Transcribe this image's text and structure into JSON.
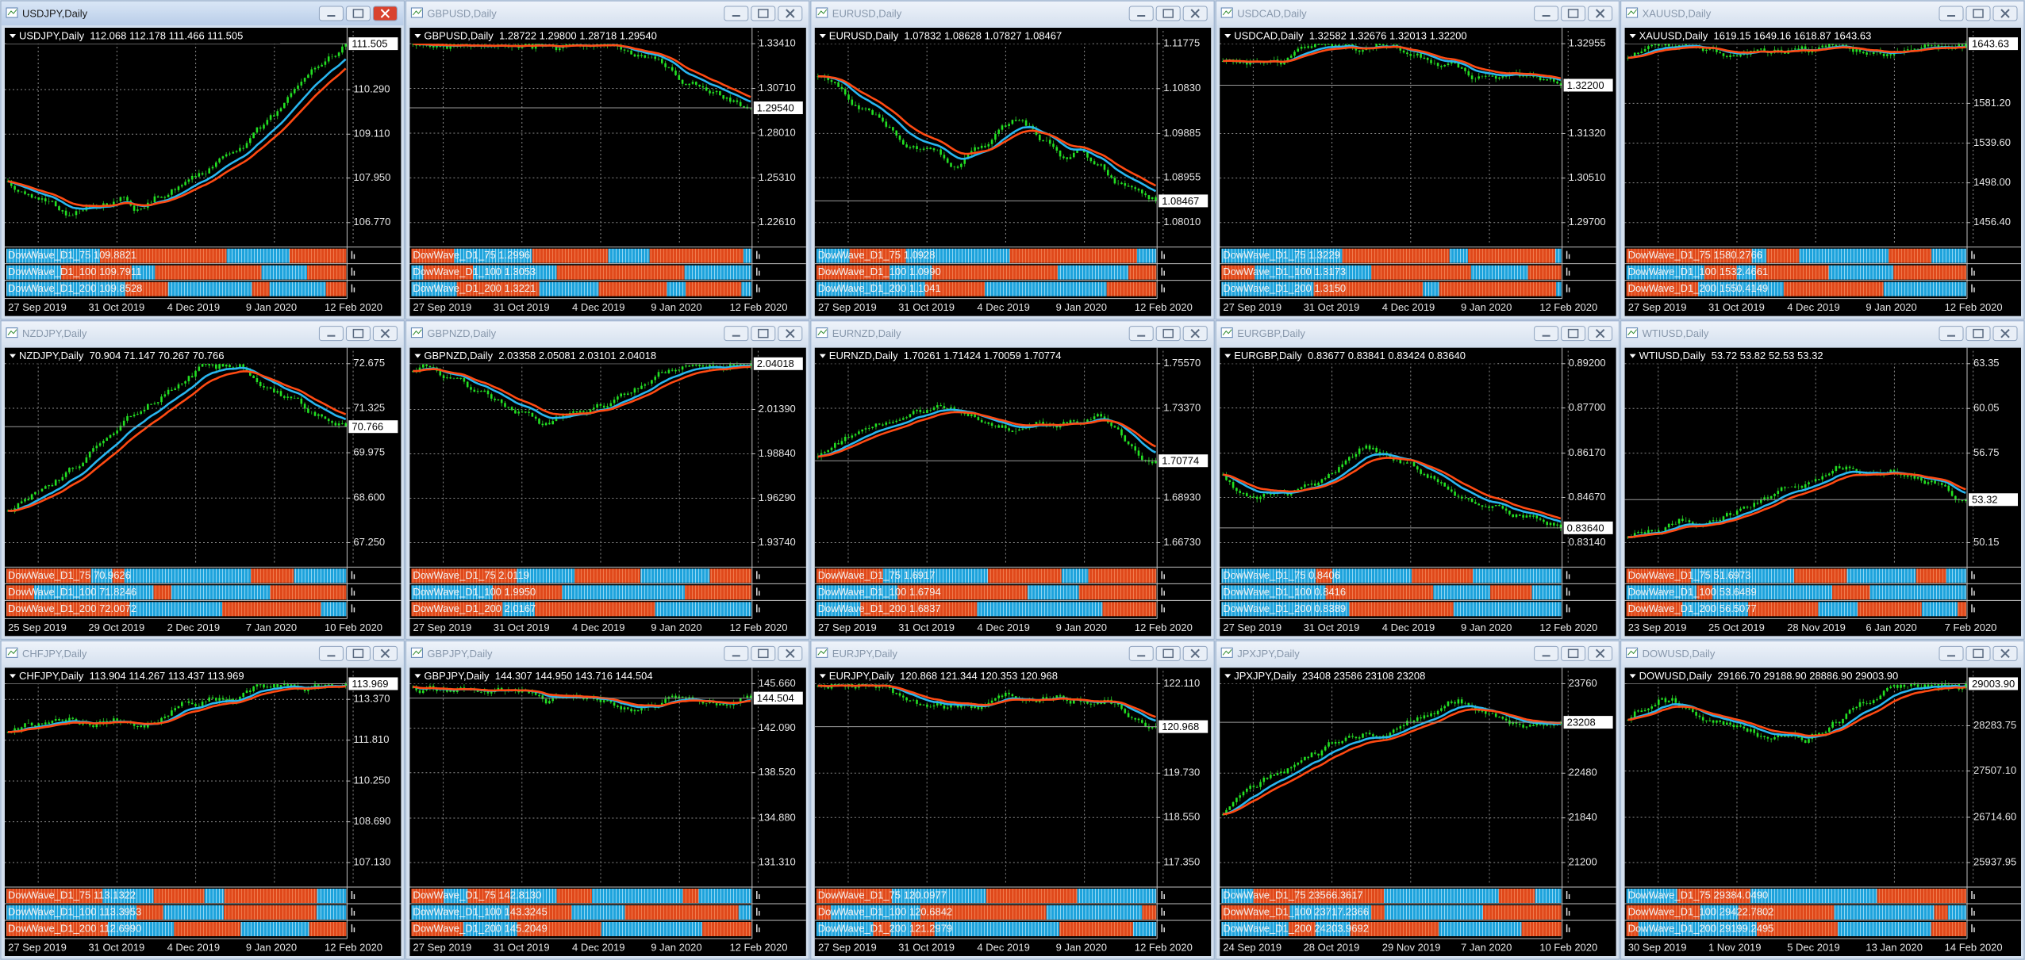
{
  "windows": [
    {
      "title": "USDJPY,Daily",
      "header": "USDJPY,Daily  112.068 112.178 111.466 111.505",
      "price_scale": [
        "110.290",
        "109.110",
        "107.950",
        "106.770"
      ],
      "current_price": "111.505",
      "indicators": [
        "DowWave_D1_75 109.8821",
        "DowWave_D1_100 109.7911",
        "DowWave_D1_200 109.8528"
      ],
      "dates": [
        "27 Sep 2019",
        "31 Oct 2019",
        "4 Dec 2019",
        "9 Jan 2020",
        "12 Feb 2020"
      ]
    },
    {
      "title": "GBPUSD,Daily",
      "header": "GBPUSD,Daily  1.28722 1.29800 1.28718 1.29540",
      "price_scale": [
        "1.33410",
        "1.30710",
        "1.28010",
        "1.25310",
        "1.22610"
      ],
      "current_price": "1.29540",
      "indicators": [
        "DowWave_D1_75 1.2996",
        "DowWave_D1_100 1.3053",
        "DowWave_D1_200 1.3221"
      ],
      "dates": [
        "27 Sep 2019",
        "31 Oct 2019",
        "4 Dec 2019",
        "9 Jan 2020",
        "12 Feb 2020"
      ]
    },
    {
      "title": "EURUSD,Daily",
      "header": "EURUSD,Daily  1.07832 1.08628 1.07827 1.08467",
      "price_scale": [
        "1.11775",
        "1.10830",
        "1.09885",
        "1.08955",
        "1.08010"
      ],
      "current_price": "1.08467",
      "indicators": [
        "DowWave_D1_75 1.0928",
        "DowWave_D1_100 1.0990",
        "DowWave_D1_200 1.1041"
      ],
      "dates": [
        "27 Sep 2019",
        "31 Oct 2019",
        "4 Dec 2019",
        "9 Jan 2020",
        "12 Feb 2020"
      ]
    },
    {
      "title": "USDCAD,Daily",
      "header": "USDCAD,Daily  1.32582 1.32676 1.32013 1.32200",
      "price_scale": [
        "1.32955",
        "1.31320",
        "1.30510",
        "1.29700"
      ],
      "current_price": "1.32200",
      "indicators": [
        "DowWave_D1_75 1.3229",
        "DowWave_D1_100 1.3173",
        "DowWave_D1_200 1.3150"
      ],
      "dates": [
        "27 Sep 2019",
        "31 Oct 2019",
        "4 Dec 2019",
        "9 Jan 2020",
        "12 Feb 2020"
      ]
    },
    {
      "title": "XAUUSD,Daily",
      "header": "XAUUSD,Daily  1619.15 1649.16 1618.87 1643.63",
      "price_scale": [
        "1581.20",
        "1539.60",
        "1498.00",
        "1456.40"
      ],
      "current_price": "1643.63",
      "indicators": [
        "DowWave_D1_75 1580.2766",
        "DowWave_D1_100 1532.4661",
        "DowWave_D1_200 1550.4149"
      ],
      "dates": [
        "27 Sep 2019",
        "31 Oct 2019",
        "4 Dec 2019",
        "9 Jan 2020",
        "12 Feb 2020"
      ]
    },
    {
      "title": "NZDJPY,Daily",
      "header": "NZDJPY,Daily  70.904 71.147 70.267 70.766",
      "price_scale": [
        "72.675",
        "71.325",
        "69.975",
        "68.600",
        "67.250"
      ],
      "current_price": "70.766",
      "indicators": [
        "DowWave_D1_75 70.9626",
        "DowWave_D1_100 71.8246",
        "DowWave_D1_200 72.0072"
      ],
      "dates": [
        "25 Sep 2019",
        "29 Oct 2019",
        "2 Dec 2019",
        "7 Jan 2020",
        "10 Feb 2020"
      ]
    },
    {
      "title": "GBPNZD,Daily",
      "header": "GBPNZD,Daily  2.03358 2.05081 2.03101 2.04018",
      "price_scale": [
        "2.01390",
        "1.98840",
        "1.96290",
        "1.93740"
      ],
      "current_price": "2.04018",
      "indicators": [
        "DowWave_D1_75 2.0119",
        "DowWave_D1_100 1.9950",
        "DowWave_D1_200 2.0167"
      ],
      "dates": [
        "27 Sep 2019",
        "31 Oct 2019",
        "4 Dec 2019",
        "9 Jan 2020",
        "12 Feb 2020"
      ]
    },
    {
      "title": "EURNZD,Daily",
      "header": "EURNZD,Daily  1.70261 1.71424 1.70059 1.70774",
      "price_scale": [
        "1.75570",
        "1.73370",
        "1.68930",
        "1.66730"
      ],
      "current_price": "1.70774",
      "indicators": [
        "DowWave_D1_75 1.6917",
        "DowWave_D1_100 1.6794",
        "DowWave_D1_200 1.6837"
      ],
      "dates": [
        "27 Sep 2019",
        "31 Oct 2019",
        "4 Dec 2019",
        "9 Jan 2020",
        "12 Feb 2020"
      ]
    },
    {
      "title": "EURGBP,Daily",
      "header": "EURGBP,Daily  0.83677 0.83841 0.83424 0.83640",
      "price_scale": [
        "0.89200",
        "0.87700",
        "0.86170",
        "0.84670",
        "0.83140"
      ],
      "current_price": "0.83640",
      "indicators": [
        "DowWave_D1_75 0.8406",
        "DowWave_D1_100 0.8416",
        "DowWave_D1_200 0.8389"
      ],
      "dates": [
        "27 Sep 2019",
        "31 Oct 2019",
        "4 Dec 2019",
        "9 Jan 2020",
        "12 Feb 2020"
      ]
    },
    {
      "title": "WTIUSD,Daily",
      "header": "WTIUSD,Daily  53.72 53.82 52.53 53.32",
      "price_scale": [
        "63.35",
        "60.05",
        "56.75",
        "50.15"
      ],
      "current_price": "53.32",
      "indicators": [
        "DowWave_D1_75 51.6973",
        "DowWave_D1_100 53.6489",
        "DowWave_D1_200 56.5077"
      ],
      "dates": [
        "23 Sep 2019",
        "25 Oct 2019",
        "28 Nov 2019",
        "6 Jan 2020",
        "7 Feb 2020"
      ]
    },
    {
      "title": "CHFJPY,Daily",
      "header": "CHFJPY,Daily  113.904 114.267 113.437 113.969",
      "price_scale": [
        "113.370",
        "111.810",
        "110.250",
        "108.690",
        "107.130"
      ],
      "current_price": "113.969",
      "indicators": [
        "DowWave_D1_75 113.1322",
        "DowWave_D1_100 113.3953",
        "DowWave_D1_200 112.6990"
      ],
      "dates": [
        "27 Sep 2019",
        "31 Oct 2019",
        "4 Dec 2019",
        "9 Jan 2020",
        "12 Feb 2020"
      ]
    },
    {
      "title": "GBPJPY,Daily",
      "header": "GBPJPY,Daily  144.307 144.950 143.716 144.504",
      "price_scale": [
        "145.660",
        "142.090",
        "138.520",
        "134.880",
        "131.310"
      ],
      "current_price": "144.504",
      "indicators": [
        "DowWave_D1_75 142.8130",
        "DowWave_D1_100 143.3245",
        "DowWave_D1_200 145.2049"
      ],
      "dates": [
        "27 Sep 2019",
        "31 Oct 2019",
        "4 Dec 2019",
        "9 Jan 2020",
        "12 Feb 2020"
      ]
    },
    {
      "title": "EURJPY,Daily",
      "header": "EURJPY,Daily  120.868 121.344 120.353 120.968",
      "price_scale": [
        "122.110",
        "119.730",
        "118.550",
        "117.350"
      ],
      "current_price": "120.968",
      "indicators": [
        "DowWave_D1_75 120.0977",
        "DowWave_D1_100 120.6842",
        "DowWave_D1_200 121.2979"
      ],
      "dates": [
        "27 Sep 2019",
        "31 Oct 2019",
        "4 Dec 2019",
        "9 Jan 2020",
        "12 Feb 2020"
      ]
    },
    {
      "title": "JPXJPY,Daily",
      "header": "JPXJPY,Daily  23408 23586 23108 23208",
      "price_scale": [
        "23760",
        "22480",
        "21840",
        "21200"
      ],
      "current_price": "23208",
      "indicators": [
        "DowWave_D1_75 23566.3617",
        "DowWave_D1_100 23717.2366",
        "DowWave_D1_200 24203.9692"
      ],
      "dates": [
        "24 Sep 2019",
        "28 Oct 2019",
        "29 Nov 2019",
        "7 Jan 2020",
        "10 Feb 2020"
      ]
    },
    {
      "title": "DOWUSD,Daily",
      "header": "DOWUSD,Daily  29166.70 29188.90 28886.90 29003.90",
      "price_scale": [
        "28283.75",
        "27507.10",
        "26714.60",
        "25937.95"
      ],
      "current_price": "29003.90",
      "indicators": [
        "DowWave_D1_75 29384.0490",
        "DowWave_D1_100 29422.7802",
        "DowWave_D1_200 29199.2495"
      ],
      "dates": [
        "30 Sep 2019",
        "1 Nov 2019",
        "5 Dec 2019",
        "13 Jan 2020",
        "14 Feb 2020"
      ]
    }
  ]
}
